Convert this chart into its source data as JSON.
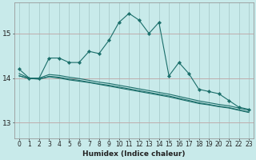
{
  "xlabel": "Humidex (Indice chaleur)",
  "background_color": "#c8eaea",
  "grid_color": "#a8cccc",
  "line_color": "#1a6e6a",
  "x_values": [
    0,
    1,
    2,
    3,
    4,
    5,
    6,
    7,
    8,
    9,
    10,
    11,
    12,
    13,
    14,
    15,
    16,
    17,
    18,
    19,
    20,
    21,
    22,
    23
  ],
  "line1": [
    14.2,
    14.0,
    14.0,
    14.45,
    14.45,
    14.35,
    14.35,
    14.6,
    14.55,
    14.85,
    15.25,
    15.45,
    15.3,
    15.0,
    15.25,
    14.05,
    14.35,
    14.1,
    13.75,
    13.7,
    13.65,
    13.5,
    13.35,
    13.3
  ],
  "line2": [
    14.1,
    14.0,
    14.0,
    14.08,
    14.06,
    14.02,
    13.99,
    13.95,
    13.91,
    13.88,
    13.84,
    13.8,
    13.76,
    13.72,
    13.68,
    13.64,
    13.59,
    13.54,
    13.49,
    13.45,
    13.41,
    13.38,
    13.33,
    13.28
  ],
  "line3": [
    14.05,
    13.99,
    13.98,
    14.04,
    14.02,
    13.98,
    13.95,
    13.91,
    13.87,
    13.84,
    13.8,
    13.76,
    13.72,
    13.68,
    13.64,
    13.6,
    13.55,
    13.5,
    13.45,
    13.41,
    13.37,
    13.34,
    13.29,
    13.24
  ],
  "line4": [
    14.05,
    13.99,
    13.98,
    14.03,
    14.0,
    13.96,
    13.93,
    13.9,
    13.86,
    13.82,
    13.78,
    13.74,
    13.7,
    13.66,
    13.62,
    13.58,
    13.53,
    13.48,
    13.43,
    13.4,
    13.36,
    13.33,
    13.28,
    13.23
  ],
  "ylim": [
    12.65,
    15.7
  ],
  "yticks": [
    13,
    14,
    15
  ],
  "xticks": [
    0,
    1,
    2,
    3,
    4,
    5,
    6,
    7,
    8,
    9,
    10,
    11,
    12,
    13,
    14,
    15,
    16,
    17,
    18,
    19,
    20,
    21,
    22,
    23
  ],
  "tick_fontsize": 5.5,
  "xlabel_fontsize": 6.5
}
